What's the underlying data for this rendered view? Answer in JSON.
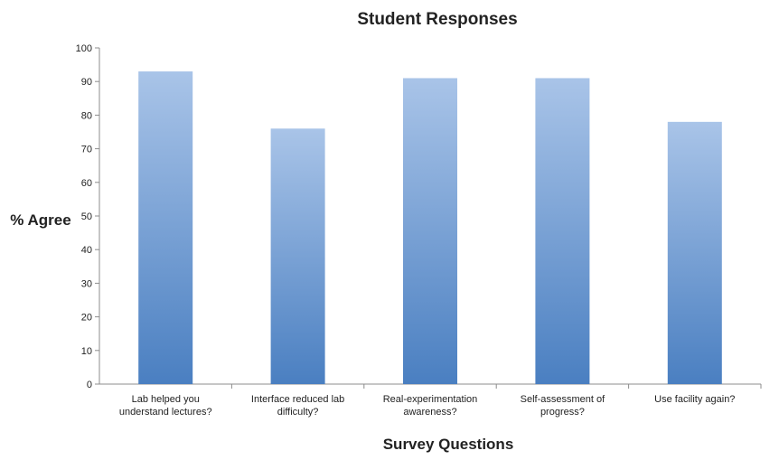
{
  "chart_data": {
    "type": "bar",
    "title": "Student Responses",
    "xlabel": "Survey Questions",
    "ylabel": "% Agree",
    "categories": [
      [
        "Lab helped you",
        "understand lectures?"
      ],
      [
        "Interface reduced lab",
        "difficulty?"
      ],
      [
        "Real-experimentation",
        "awareness?"
      ],
      [
        "Self-assessment of",
        "progress?"
      ],
      [
        "Use facility again?"
      ]
    ],
    "values": [
      93,
      76,
      91,
      91,
      78
    ],
    "ylim": [
      0,
      100
    ],
    "yticks": [
      0,
      10,
      20,
      30,
      40,
      50,
      60,
      70,
      80,
      90,
      100
    ],
    "grid": false,
    "legend": "none",
    "colors": {
      "bar_top": "#a9c4e8",
      "bar_bottom": "#4a7fc1",
      "axis": "#8c8c8c",
      "text": "#222222"
    }
  }
}
